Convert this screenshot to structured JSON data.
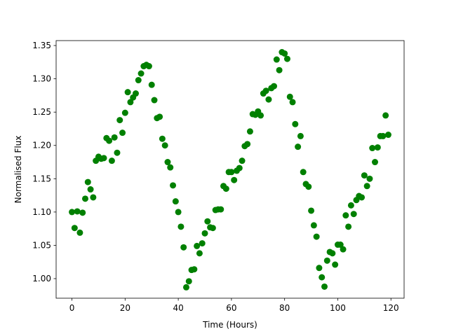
{
  "chart_data": {
    "type": "scatter",
    "x_label": "Time (Hours)",
    "y_label": "Normalised Flux",
    "series": [
      {
        "color": "#008000",
        "x": [
          0,
          1,
          2,
          3,
          4,
          5,
          6,
          7,
          8,
          9,
          10,
          11,
          12,
          13,
          14,
          15,
          16,
          17,
          18,
          19,
          20,
          21,
          22,
          23,
          24,
          25,
          26,
          27,
          28,
          29,
          30,
          31,
          32,
          33,
          34,
          35,
          36,
          37,
          38,
          39,
          40,
          41,
          42,
          43,
          44,
          45,
          46,
          47,
          48,
          49,
          50,
          51,
          52,
          53,
          54,
          55,
          56,
          57,
          58,
          59,
          60,
          61,
          62,
          63,
          64,
          65,
          66,
          67,
          68,
          69,
          70,
          71,
          72,
          73,
          74,
          75,
          76,
          77,
          78,
          79,
          80,
          81,
          82,
          83,
          84,
          85,
          86,
          87,
          88,
          89,
          90,
          91,
          92,
          93,
          94,
          95,
          96,
          97,
          98,
          99,
          100,
          101,
          102,
          103,
          104,
          105,
          106,
          107,
          108,
          109,
          110,
          111,
          112,
          113,
          114,
          115,
          116,
          117,
          118,
          119
        ],
        "values": [
          1.1,
          1.076,
          1.101,
          1.069,
          1.099,
          1.12,
          1.145,
          1.134,
          1.122,
          1.177,
          1.183,
          1.18,
          1.181,
          1.211,
          1.207,
          1.177,
          1.212,
          1.189,
          1.238,
          1.219,
          1.249,
          1.28,
          1.265,
          1.272,
          1.278,
          1.298,
          1.308,
          1.319,
          1.321,
          1.319,
          1.291,
          1.268,
          1.241,
          1.243,
          1.21,
          1.2,
          1.175,
          1.167,
          1.14,
          1.116,
          1.1,
          1.078,
          1.047,
          0.987,
          0.996,
          1.013,
          1.014,
          1.049,
          1.038,
          1.053,
          1.068,
          1.086,
          1.077,
          1.076,
          1.103,
          1.104,
          1.104,
          1.139,
          1.135,
          1.16,
          1.16,
          1.148,
          1.162,
          1.166,
          1.177,
          1.199,
          1.202,
          1.221,
          1.247,
          1.246,
          1.251,
          1.245,
          1.278,
          1.282,
          1.269,
          1.286,
          1.289,
          1.329,
          1.313,
          1.34,
          1.338,
          1.33,
          1.273,
          1.265,
          1.232,
          1.198,
          1.214,
          1.16,
          1.142,
          1.138,
          1.102,
          1.08,
          1.063,
          1.016,
          1.002,
          0.988,
          1.027,
          1.04,
          1.038,
          1.021,
          1.051,
          1.051,
          1.044,
          1.095,
          1.078,
          1.11,
          1.097,
          1.118,
          1.124,
          1.122,
          1.155,
          1.139,
          1.15,
          1.196,
          1.175,
          1.197,
          1.214,
          1.214,
          1.245,
          1.216
        ]
      }
    ],
    "xlim": [
      -5.95,
      124.95
    ],
    "xticks": [
      0,
      20,
      40,
      60,
      80,
      100,
      120
    ],
    "ylim": [
      0.9706,
      1.3574
    ],
    "yticks": [
      {
        "value": 1.0,
        "label": "1.00"
      },
      {
        "value": 1.05,
        "label": "1.05"
      },
      {
        "value": 1.1,
        "label": "1.10"
      },
      {
        "value": 1.15,
        "label": "1.15"
      },
      {
        "value": 1.2,
        "label": "1.20"
      },
      {
        "value": 1.25,
        "label": "1.25"
      },
      {
        "value": 1.3,
        "label": "1.30"
      },
      {
        "value": 1.35,
        "label": "1.35"
      }
    ],
    "grid": false
  }
}
